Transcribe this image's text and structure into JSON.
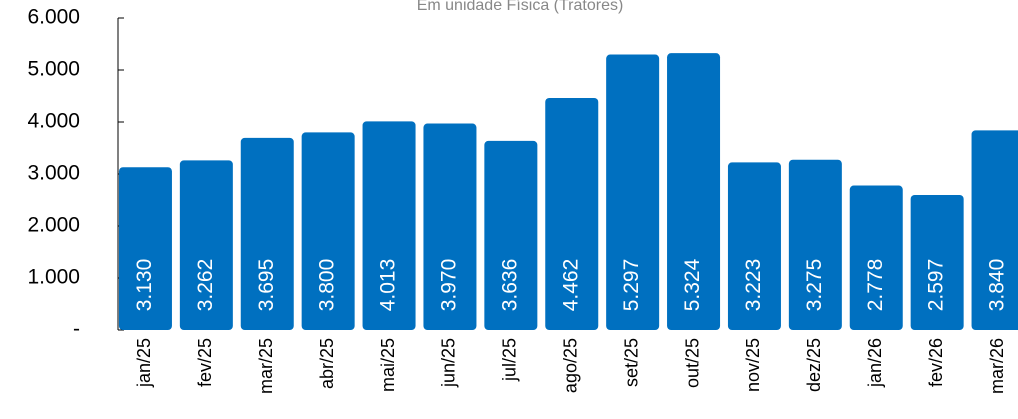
{
  "chart_data": {
    "type": "bar",
    "title": "Em unidade Física (Tratores)",
    "categories": [
      "jan/25",
      "fev/25",
      "mar/25",
      "abr/25",
      "mai/25",
      "jun/25",
      "jul/25",
      "ago/25",
      "set/25",
      "out/25",
      "nov/25",
      "dez/25",
      "jan/26",
      "fev/26",
      "mar/26"
    ],
    "values": [
      3130,
      3262,
      3695,
      3800,
      4013,
      3970,
      3636,
      4462,
      5297,
      5324,
      3223,
      3275,
      2778,
      2597,
      3840
    ],
    "value_labels": [
      "3.130",
      "3.262",
      "3.695",
      "3.800",
      "4.013",
      "3.970",
      "3.636",
      "4.462",
      "5.297",
      "5.324",
      "3.223",
      "3.275",
      "2.778",
      "2.597",
      "3.840"
    ],
    "color": "#0070c0",
    "ylim": [
      0,
      6000
    ],
    "yticks": [
      {
        "value": 0,
        "label": "-"
      },
      {
        "value": 1000,
        "label": "1.000"
      },
      {
        "value": 2000,
        "label": "2.000"
      },
      {
        "value": 3000,
        "label": "3.000"
      },
      {
        "value": 4000,
        "label": "4.000"
      },
      {
        "value": 5000,
        "label": "5.000"
      },
      {
        "value": 6000,
        "label": "6.000"
      }
    ],
    "grid": false
  }
}
